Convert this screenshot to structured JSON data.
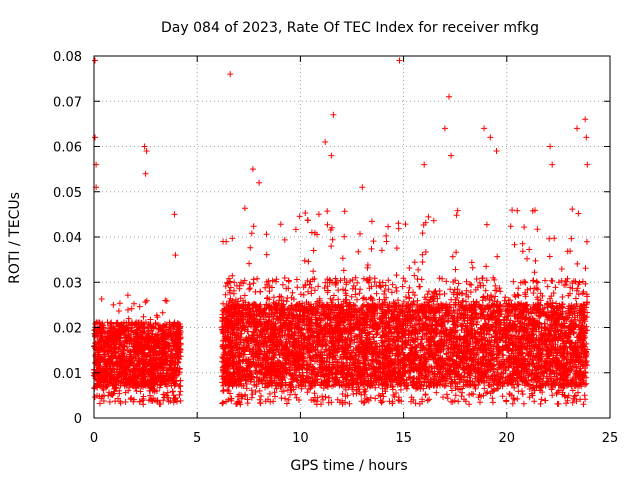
{
  "chart_data": {
    "type": "scatter",
    "title": "Day 084 of 2023, Rate Of TEC Index for receiver mfkg",
    "xlabel": "GPS time / hours",
    "ylabel": "ROTI / TECUs",
    "xlim": [
      0,
      25
    ],
    "ylim": [
      0,
      0.08
    ],
    "xticks": [
      0,
      5,
      10,
      15,
      20,
      25
    ],
    "xtick_labels": [
      "0",
      "5",
      "10",
      "15",
      "20",
      "25"
    ],
    "yticks": [
      0,
      0.01,
      0.02,
      0.03,
      0.04,
      0.05,
      0.06,
      0.07,
      0.08
    ],
    "ytick_labels": [
      "0",
      "0.01",
      "0.02",
      "0.03",
      "0.04",
      "0.05",
      "0.06",
      "0.07",
      "0.08"
    ],
    "grid": true,
    "marker": "+",
    "color": "#ff0000",
    "series": [
      {
        "name": "ROTI",
        "segments": [
          {
            "x_start": 0.0,
            "x_end": 4.2,
            "base": 0.0105,
            "spread": 0.016,
            "min": 0.003
          },
          {
            "x_start": 6.2,
            "x_end": 23.9,
            "base": 0.0135,
            "spread": 0.028,
            "min": 0.003
          }
        ],
        "notable_points": [
          {
            "x": 0.05,
            "y": 0.079
          },
          {
            "x": 0.05,
            "y": 0.062
          },
          {
            "x": 0.1,
            "y": 0.056
          },
          {
            "x": 0.1,
            "y": 0.051
          },
          {
            "x": 2.45,
            "y": 0.06
          },
          {
            "x": 2.5,
            "y": 0.054
          },
          {
            "x": 2.55,
            "y": 0.059
          },
          {
            "x": 3.9,
            "y": 0.045
          },
          {
            "x": 3.95,
            "y": 0.036
          },
          {
            "x": 6.6,
            "y": 0.076
          },
          {
            "x": 11.6,
            "y": 0.067
          },
          {
            "x": 11.2,
            "y": 0.061
          },
          {
            "x": 11.5,
            "y": 0.058
          },
          {
            "x": 14.8,
            "y": 0.079
          },
          {
            "x": 16.0,
            "y": 0.056
          },
          {
            "x": 17.2,
            "y": 0.071
          },
          {
            "x": 17.0,
            "y": 0.064
          },
          {
            "x": 17.3,
            "y": 0.058
          },
          {
            "x": 18.9,
            "y": 0.064
          },
          {
            "x": 19.2,
            "y": 0.062
          },
          {
            "x": 19.5,
            "y": 0.059
          },
          {
            "x": 22.1,
            "y": 0.06
          },
          {
            "x": 22.2,
            "y": 0.056
          },
          {
            "x": 23.4,
            "y": 0.064
          },
          {
            "x": 23.8,
            "y": 0.066
          },
          {
            "x": 23.85,
            "y": 0.062
          },
          {
            "x": 23.9,
            "y": 0.056
          },
          {
            "x": 13.0,
            "y": 0.051
          },
          {
            "x": 8.0,
            "y": 0.052
          },
          {
            "x": 7.7,
            "y": 0.055
          }
        ]
      }
    ]
  }
}
